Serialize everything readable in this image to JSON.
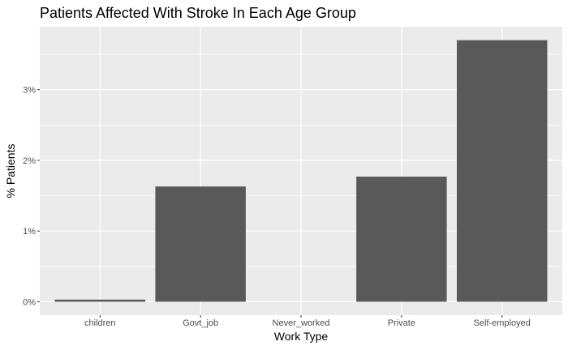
{
  "chart_data": {
    "type": "bar",
    "title": "Patients Affected With Stroke In Each Age Group",
    "xlabel": "Work Type",
    "ylabel": "% Patients",
    "categories": [
      "children",
      "Govt_job",
      "Never_worked",
      "Private",
      "Self-employed"
    ],
    "values": [
      0.03,
      1.63,
      0.0,
      1.77,
      3.7
    ],
    "yticks": [
      0,
      1,
      2,
      3
    ],
    "ytick_labels": [
      "0%",
      "1%",
      "2%",
      "3%"
    ],
    "ylim": [
      -0.19,
      3.89
    ],
    "grid": true,
    "legend": "none",
    "colors": {
      "bar": "#595959",
      "panel": "#ebebeb",
      "grid": "#ffffff",
      "tick_text": "#4d4d4d"
    }
  }
}
